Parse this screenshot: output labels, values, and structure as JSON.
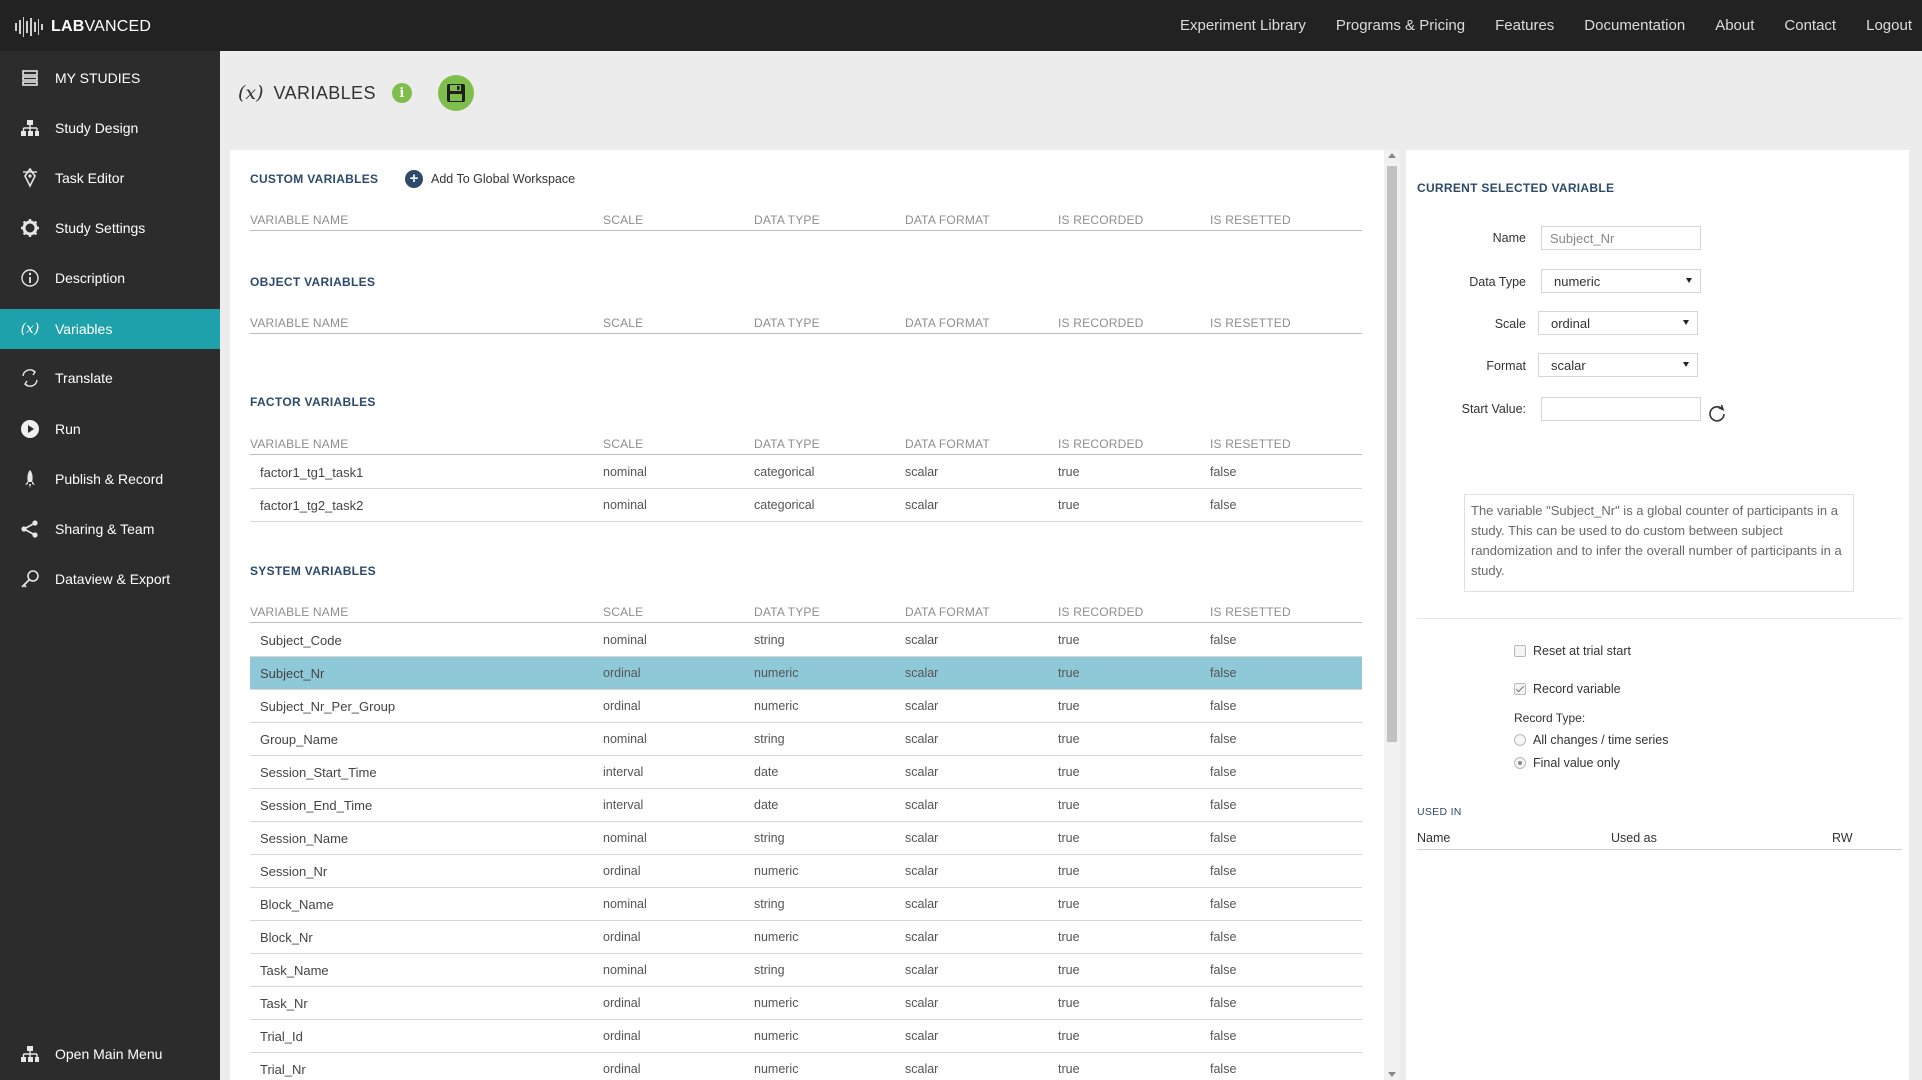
{
  "app": {
    "logo_bold": "LAB",
    "logo_rest": "VANCED",
    "topnav": [
      "Experiment Library",
      "Programs & Pricing",
      "Features",
      "Documentation",
      "About",
      "Contact",
      "Logout"
    ]
  },
  "sidebar": {
    "items": [
      {
        "label": "MY STUDIES",
        "icon": "stack-icon"
      },
      {
        "label": "Study Design",
        "icon": "hierarchy-icon"
      },
      {
        "label": "Task Editor",
        "icon": "pen-icon"
      },
      {
        "label": "Study Settings",
        "icon": "gear-icon"
      },
      {
        "label": "Description",
        "icon": "info-icon"
      },
      {
        "label": "Variables",
        "icon": "variable-icon",
        "glyph": "(x)"
      },
      {
        "label": "Translate",
        "icon": "translate-icon"
      },
      {
        "label": "Run",
        "icon": "play-icon"
      },
      {
        "label": "Publish & Record",
        "icon": "rocket-icon"
      },
      {
        "label": "Sharing & Team",
        "icon": "share-icon"
      },
      {
        "label": "Dataview & Export",
        "icon": "key-icon"
      }
    ],
    "bottom": {
      "label": "Open Main Menu",
      "icon": "hierarchy-icon"
    },
    "active_index": 5
  },
  "page": {
    "x_glyph": "(x)",
    "title": "VARIABLES",
    "info_glyph": "i"
  },
  "columns": [
    "VARIABLE NAME",
    "SCALE",
    "DATA TYPE",
    "DATA FORMAT",
    "IS RECORDED",
    "IS RESETTED"
  ],
  "custom": {
    "title": "CUSTOM VARIABLES",
    "add_label": "Add To Global Workspace",
    "rows": []
  },
  "object": {
    "title": "OBJECT VARIABLES",
    "rows": []
  },
  "factor": {
    "title": "FACTOR VARIABLES",
    "rows": [
      [
        "factor1_tg1_task1",
        "nominal",
        "categorical",
        "scalar",
        "true",
        "false"
      ],
      [
        "factor1_tg2_task2",
        "nominal",
        "categorical",
        "scalar",
        "true",
        "false"
      ]
    ]
  },
  "system": {
    "title": "SYSTEM VARIABLES",
    "selected_index": 1,
    "rows": [
      [
        "Subject_Code",
        "nominal",
        "string",
        "scalar",
        "true",
        "false"
      ],
      [
        "Subject_Nr",
        "ordinal",
        "numeric",
        "scalar",
        "true",
        "false"
      ],
      [
        "Subject_Nr_Per_Group",
        "ordinal",
        "numeric",
        "scalar",
        "true",
        "false"
      ],
      [
        "Group_Name",
        "nominal",
        "string",
        "scalar",
        "true",
        "false"
      ],
      [
        "Session_Start_Time",
        "interval",
        "date",
        "scalar",
        "true",
        "false"
      ],
      [
        "Session_End_Time",
        "interval",
        "date",
        "scalar",
        "true",
        "false"
      ],
      [
        "Session_Name",
        "nominal",
        "string",
        "scalar",
        "true",
        "false"
      ],
      [
        "Session_Nr",
        "ordinal",
        "numeric",
        "scalar",
        "true",
        "false"
      ],
      [
        "Block_Name",
        "nominal",
        "string",
        "scalar",
        "true",
        "false"
      ],
      [
        "Block_Nr",
        "ordinal",
        "numeric",
        "scalar",
        "true",
        "false"
      ],
      [
        "Task_Name",
        "nominal",
        "string",
        "scalar",
        "true",
        "false"
      ],
      [
        "Task_Nr",
        "ordinal",
        "numeric",
        "scalar",
        "true",
        "false"
      ],
      [
        "Trial_Id",
        "ordinal",
        "numeric",
        "scalar",
        "true",
        "false"
      ],
      [
        "Trial_Nr",
        "ordinal",
        "numeric",
        "scalar",
        "true",
        "false"
      ]
    ]
  },
  "detail": {
    "title": "CURRENT SELECTED VARIABLE",
    "name_label": "Name",
    "name_value": "Subject_Nr",
    "datatype_label": "Data Type",
    "datatype_value": "numeric",
    "scale_label": "Scale",
    "scale_value": "ordinal",
    "format_label": "Format",
    "format_value": "scalar",
    "start_label": "Start Value:",
    "start_value": "",
    "description": "The variable \"Subject_Nr\" is a global counter of participants in a study. This can be used to do custom between subject randomization and to infer the overall number of participants in a study.",
    "reset_label": "Reset at trial start",
    "reset_checked": false,
    "record_label": "Record variable",
    "record_checked": true,
    "record_type_label": "Record Type:",
    "record_options": [
      "All changes / time series",
      "Final value only"
    ],
    "record_selected": 1,
    "used_in_title": "USED IN",
    "used_in_cols": [
      "Name",
      "Used as",
      "RW"
    ]
  },
  "colors": {
    "topbar": "#222222",
    "sidebar": "#2c2c2c",
    "active": "#1fa1ab",
    "selected_row": "#8fc9d8",
    "accent_green": "#7fbe4b",
    "section_title": "#2d4a6b"
  }
}
